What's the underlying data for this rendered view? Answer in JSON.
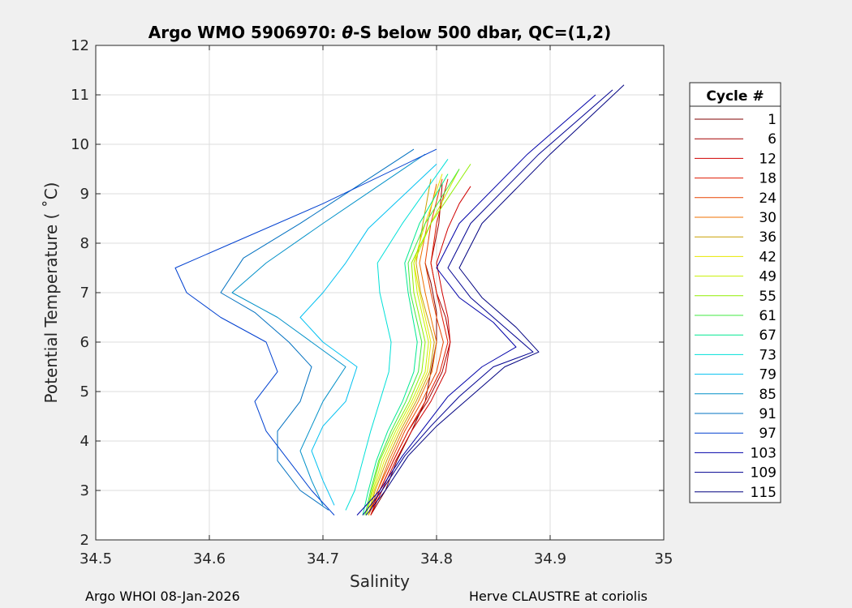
{
  "chart_data": {
    "type": "line",
    "title_prefix": "Argo WMO 5906970: ",
    "title_theta": "θ",
    "title_suffix": "-S below 500 dbar,  QC=(1,2)",
    "xlabel": "Salinity",
    "ylabel": "Potential Temperature ( ˚C)",
    "xlim": [
      34.5,
      35
    ],
    "ylim": [
      2,
      12
    ],
    "xticks": [
      "34.5",
      "34.6",
      "34.7",
      "34.8",
      "34.9",
      "35"
    ],
    "yticks": [
      "2",
      "3",
      "4",
      "5",
      "6",
      "7",
      "8",
      "9",
      "10",
      "11",
      "12"
    ],
    "grid": true,
    "legend": {
      "title": "Cycle #",
      "placement": "outside-right",
      "entries": [
        {
          "label": "1",
          "color": "#7f0000"
        },
        {
          "label": "6",
          "color": "#a50000"
        },
        {
          "label": "12",
          "color": "#d00000"
        },
        {
          "label": "18",
          "color": "#e01a00"
        },
        {
          "label": "24",
          "color": "#e84400"
        },
        {
          "label": "30",
          "color": "#ef7000"
        },
        {
          "label": "36",
          "color": "#c9a000"
        },
        {
          "label": "42",
          "color": "#e8e800"
        },
        {
          "label": "49",
          "color": "#c8f000"
        },
        {
          "label": "55",
          "color": "#90ee00"
        },
        {
          "label": "61",
          "color": "#40e840"
        },
        {
          "label": "67",
          "color": "#00e890"
        },
        {
          "label": "73",
          "color": "#00e0d8"
        },
        {
          "label": "79",
          "color": "#00c0f0"
        },
        {
          "label": "85",
          "color": "#0090c8"
        },
        {
          "label": "91",
          "color": "#0070c0"
        },
        {
          "label": "97",
          "color": "#0040d0"
        },
        {
          "label": "103",
          "color": "#0000a8"
        },
        {
          "label": "109",
          "color": "#000090"
        },
        {
          "label": "115",
          "color": "#000080"
        }
      ]
    },
    "series": [
      {
        "cycle": "1",
        "color": "#7f0000",
        "x": [
          34.742,
          34.755,
          34.765,
          34.778,
          34.79,
          34.795,
          34.8,
          34.8,
          34.795,
          34.79
        ],
        "y": [
          2.5,
          3.0,
          3.6,
          4.2,
          4.8,
          5.4,
          6.0,
          6.6,
          7.2,
          7.6
        ]
      },
      {
        "cycle": "6",
        "color": "#a50000",
        "x": [
          34.74,
          34.75,
          34.762,
          34.775,
          34.792,
          34.805,
          34.812,
          34.808,
          34.8,
          34.795,
          34.802,
          34.805
        ],
        "y": [
          2.5,
          3.0,
          3.6,
          4.2,
          4.8,
          5.4,
          6.0,
          6.5,
          7.0,
          7.6,
          8.4,
          9.2
        ]
      },
      {
        "cycle": "12",
        "color": "#d00000",
        "x": [
          34.742,
          34.752,
          34.764,
          34.778,
          34.795,
          34.808,
          34.812,
          34.81,
          34.805,
          34.8,
          34.81,
          34.82,
          34.83
        ],
        "y": [
          2.5,
          3.0,
          3.6,
          4.2,
          4.8,
          5.4,
          6.0,
          6.5,
          7.0,
          7.6,
          8.3,
          8.8,
          9.15
        ]
      },
      {
        "cycle": "18",
        "color": "#e01a00",
        "x": [
          34.742,
          34.75,
          34.762,
          34.775,
          34.79,
          34.803,
          34.81,
          34.805,
          34.8,
          34.795,
          34.8,
          34.81
        ],
        "y": [
          2.5,
          3.0,
          3.6,
          4.2,
          4.8,
          5.4,
          6.0,
          6.5,
          7.0,
          7.6,
          8.4,
          9.3
        ]
      },
      {
        "cycle": "24",
        "color": "#e84400",
        "x": [
          34.74,
          34.748,
          34.76,
          34.772,
          34.787,
          34.8,
          34.806,
          34.8,
          34.795,
          34.79,
          34.795,
          34.805
        ],
        "y": [
          2.5,
          3.0,
          3.6,
          4.2,
          4.8,
          5.4,
          6.0,
          6.5,
          7.0,
          7.6,
          8.4,
          9.3
        ]
      },
      {
        "cycle": "30",
        "color": "#ef7000",
        "x": [
          34.74,
          34.748,
          34.758,
          34.77,
          34.784,
          34.796,
          34.8,
          34.795,
          34.79,
          34.785,
          34.792,
          34.8
        ],
        "y": [
          2.5,
          3.0,
          3.6,
          4.2,
          4.8,
          5.4,
          6.0,
          6.5,
          7.0,
          7.6,
          8.4,
          9.2
        ]
      },
      {
        "cycle": "36",
        "color": "#c9a000",
        "x": [
          34.74,
          34.746,
          34.756,
          34.768,
          34.782,
          34.794,
          34.798,
          34.792,
          34.786,
          34.782,
          34.788,
          34.795
        ],
        "y": [
          2.5,
          3.0,
          3.6,
          4.2,
          4.8,
          5.4,
          6.0,
          6.5,
          7.0,
          7.6,
          8.4,
          9.3
        ]
      },
      {
        "cycle": "42",
        "color": "#e8e800",
        "x": [
          34.74,
          34.745,
          34.754,
          34.766,
          34.78,
          34.792,
          34.795,
          34.79,
          34.785,
          34.78,
          34.79,
          34.805
        ],
        "y": [
          2.5,
          3.0,
          3.6,
          4.2,
          4.8,
          5.4,
          6.0,
          6.5,
          7.0,
          7.6,
          8.4,
          9.4
        ]
      },
      {
        "cycle": "49",
        "color": "#c8f000",
        "x": [
          34.738,
          34.744,
          34.752,
          34.764,
          34.778,
          34.79,
          34.793,
          34.788,
          34.783,
          34.78,
          34.795,
          34.82
        ],
        "y": [
          2.5,
          3.0,
          3.6,
          4.2,
          4.8,
          5.4,
          6.0,
          6.5,
          7.0,
          7.6,
          8.4,
          9.5
        ]
      },
      {
        "cycle": "55",
        "color": "#90ee00",
        "x": [
          34.738,
          34.743,
          34.75,
          34.762,
          34.776,
          34.787,
          34.79,
          34.785,
          34.78,
          34.778,
          34.795,
          34.83
        ],
        "y": [
          2.5,
          3.0,
          3.6,
          4.2,
          4.8,
          5.4,
          6.0,
          6.5,
          7.0,
          7.6,
          8.4,
          9.6
        ]
      },
      {
        "cycle": "61",
        "color": "#40e840",
        "x": [
          34.737,
          34.742,
          34.749,
          34.76,
          34.773,
          34.784,
          34.787,
          34.782,
          34.777,
          34.775,
          34.79,
          34.82
        ],
        "y": [
          2.5,
          3.0,
          3.6,
          4.2,
          4.8,
          5.4,
          6.0,
          6.5,
          7.0,
          7.6,
          8.4,
          9.5
        ]
      },
      {
        "cycle": "67",
        "color": "#00e890",
        "x": [
          34.735,
          34.74,
          34.747,
          34.757,
          34.77,
          34.78,
          34.783,
          34.779,
          34.775,
          34.772,
          34.785,
          34.81
        ],
        "y": [
          2.5,
          3.0,
          3.6,
          4.2,
          4.8,
          5.4,
          6.0,
          6.5,
          7.0,
          7.6,
          8.4,
          9.4
        ]
      },
      {
        "cycle": "73",
        "color": "#00e0d8",
        "x": [
          34.72,
          34.728,
          34.735,
          34.742,
          34.75,
          34.758,
          34.76,
          34.755,
          34.75,
          34.748,
          34.77,
          34.81
        ],
        "y": [
          2.6,
          3.0,
          3.6,
          4.2,
          4.8,
          5.4,
          6.0,
          6.5,
          7.0,
          7.6,
          8.4,
          9.7
        ]
      },
      {
        "cycle": "79",
        "color": "#00c0f0",
        "x": [
          34.71,
          34.7,
          34.69,
          34.7,
          34.72,
          34.73,
          34.7,
          34.68,
          34.7,
          34.72,
          34.74,
          34.8
        ],
        "y": [
          2.7,
          3.2,
          3.8,
          4.3,
          4.8,
          5.5,
          6.0,
          6.5,
          7.0,
          7.6,
          8.3,
          9.6
        ]
      },
      {
        "cycle": "85",
        "color": "#0090c8",
        "x": [
          34.7,
          34.69,
          34.68,
          34.69,
          34.7,
          34.72,
          34.69,
          34.66,
          34.62,
          34.65,
          34.7,
          34.79
        ],
        "y": [
          2.7,
          3.2,
          3.8,
          4.3,
          4.8,
          5.5,
          6.0,
          6.5,
          7.0,
          7.6,
          8.4,
          9.8
        ]
      },
      {
        "cycle": "91",
        "color": "#0070c0",
        "x": [
          34.705,
          34.68,
          34.66,
          34.66,
          34.68,
          34.69,
          34.67,
          34.64,
          34.61,
          34.63,
          34.68,
          34.78
        ],
        "y": [
          2.6,
          3.0,
          3.6,
          4.2,
          4.8,
          5.5,
          6.0,
          6.6,
          7.0,
          7.7,
          8.4,
          9.9
        ]
      },
      {
        "cycle": "97",
        "color": "#0040d0",
        "x": [
          34.71,
          34.69,
          34.67,
          34.65,
          34.64,
          34.66,
          34.65,
          34.61,
          34.58,
          34.57,
          34.62,
          34.7,
          34.8
        ],
        "y": [
          2.5,
          3.0,
          3.6,
          4.2,
          4.8,
          5.4,
          6.0,
          6.5,
          7.0,
          7.5,
          8.0,
          8.8,
          9.9
        ]
      },
      {
        "cycle": "103",
        "color": "#0000a8",
        "x": [
          34.73,
          34.75,
          34.77,
          34.79,
          34.81,
          34.84,
          34.87,
          34.85,
          34.82,
          34.8,
          34.82,
          34.88,
          34.94
        ],
        "y": [
          2.5,
          3.0,
          3.7,
          4.3,
          4.9,
          5.5,
          5.9,
          6.4,
          6.9,
          7.5,
          8.4,
          9.8,
          11.0
        ]
      },
      {
        "cycle": "109",
        "color": "#000090",
        "x": [
          34.735,
          34.752,
          34.772,
          34.795,
          34.82,
          34.85,
          34.885,
          34.86,
          34.83,
          34.81,
          34.83,
          34.89,
          34.955
        ],
        "y": [
          2.5,
          3.0,
          3.7,
          4.3,
          4.9,
          5.5,
          5.8,
          6.3,
          6.9,
          7.5,
          8.4,
          9.8,
          11.1
        ]
      },
      {
        "cycle": "115",
        "color": "#000080",
        "x": [
          34.738,
          34.755,
          34.775,
          34.8,
          34.83,
          34.86,
          34.89,
          34.87,
          34.84,
          34.82,
          34.84,
          34.9,
          34.965
        ],
        "y": [
          2.5,
          3.0,
          3.7,
          4.3,
          4.9,
          5.5,
          5.8,
          6.3,
          6.9,
          7.5,
          8.4,
          9.8,
          11.2
        ]
      }
    ]
  },
  "footer": {
    "left": "Argo WHOI 08-Jan-2026",
    "right": "Herve CLAUSTRE at coriolis"
  }
}
